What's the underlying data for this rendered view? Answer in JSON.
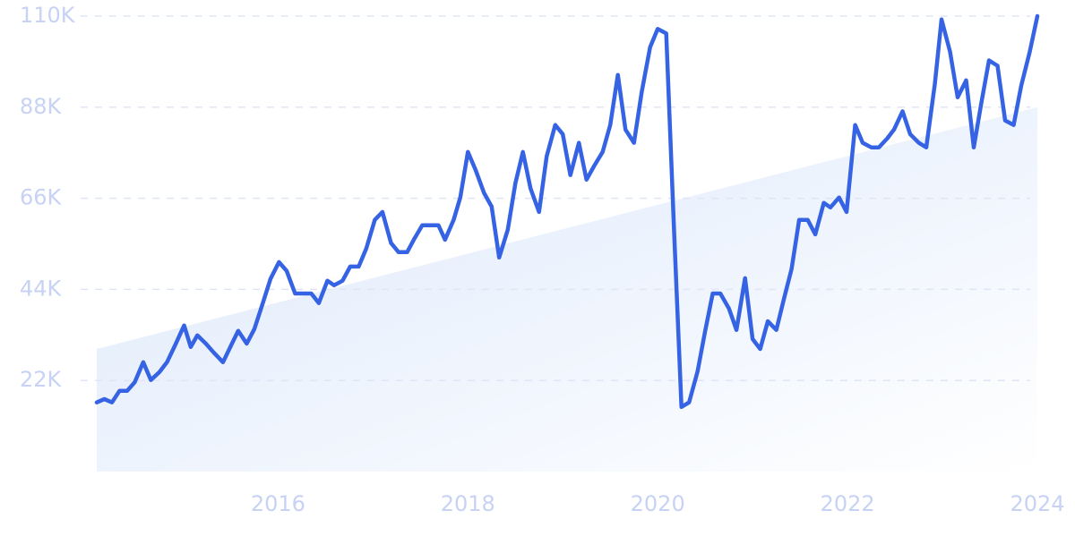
{
  "chart_data": {
    "type": "line",
    "x": [
      2014.09,
      2014.17,
      2014.25,
      2014.33,
      2014.41,
      2014.49,
      2014.58,
      2014.66,
      2014.75,
      2014.83,
      2014.92,
      2015.01,
      2015.08,
      2015.15,
      2015.24,
      2015.32,
      2015.42,
      2015.51,
      2015.58,
      2015.67,
      2015.75,
      2015.84,
      2015.92,
      2016.01,
      2016.09,
      2016.18,
      2016.26,
      2016.35,
      2016.43,
      2016.52,
      2016.59,
      2016.68,
      2016.76,
      2016.85,
      2016.93,
      2017.02,
      2017.1,
      2017.19,
      2017.27,
      2017.36,
      2017.43,
      2017.52,
      2017.6,
      2017.69,
      2017.76,
      2017.85,
      2017.92,
      2018.0,
      2018.08,
      2018.17,
      2018.25,
      2018.33,
      2018.42,
      2018.5,
      2018.58,
      2018.66,
      2018.75,
      2018.83,
      2018.92,
      2019.0,
      2019.08,
      2019.17,
      2019.25,
      2019.33,
      2019.42,
      2019.5,
      2019.58,
      2019.66,
      2019.75,
      2019.83,
      2019.92,
      2020.0,
      2020.09,
      2020.17,
      2020.25,
      2020.33,
      2020.42,
      2020.5,
      2020.58,
      2020.66,
      2020.75,
      2020.83,
      2020.92,
      2021.0,
      2021.08,
      2021.16,
      2021.25,
      2021.33,
      2021.41,
      2021.49,
      2021.58,
      2021.66,
      2021.75,
      2021.82,
      2021.91,
      2021.99,
      2022.08,
      2022.16,
      2022.25,
      2022.33,
      2022.42,
      2022.49,
      2022.58,
      2022.66,
      2022.75,
      2022.83,
      2022.92,
      2022.99,
      2023.08,
      2023.16,
      2023.25,
      2023.33,
      2023.41,
      2023.49,
      2023.58,
      2023.66,
      2023.75,
      2023.83,
      2023.92,
      2024.0
    ],
    "series": [
      {
        "color": "#3563e3",
        "values": [
          16700,
          17500,
          16700,
          19500,
          19500,
          21600,
          26400,
          22100,
          24000,
          26400,
          30700,
          35300,
          30100,
          32900,
          30900,
          28800,
          26400,
          30700,
          34000,
          30900,
          34400,
          40700,
          46500,
          50600,
          48500,
          43000,
          43000,
          43000,
          40700,
          46100,
          45000,
          46100,
          49500,
          49500,
          53900,
          60800,
          62700,
          55200,
          53000,
          53000,
          56000,
          59500,
          59500,
          59500,
          56000,
          60800,
          66200,
          77200,
          72900,
          67300,
          64000,
          51700,
          58400,
          69600,
          77200,
          68400,
          62700,
          76100,
          83700,
          81500,
          71600,
          79400,
          70500,
          73800,
          77200,
          83700,
          95800,
          82600,
          79400,
          91500,
          102500,
          106900,
          105800,
          59500,
          15600,
          16700,
          24200,
          34000,
          43000,
          43000,
          39400,
          34200,
          46700,
          32000,
          29600,
          36300,
          34200,
          41700,
          48900,
          60800,
          60800,
          57300,
          64900,
          63800,
          66200,
          62700,
          83700,
          79400,
          78300,
          78300,
          80500,
          82600,
          87000,
          81500,
          79400,
          78300,
          93700,
          109200,
          101400,
          90400,
          94500,
          78300,
          89100,
          99300,
          98000,
          84800,
          83700,
          93200,
          101400,
          110000
        ]
      }
    ],
    "trend": {
      "x": [
        2014.09,
        2024.0
      ],
      "values": [
        29600,
        88000
      ],
      "color": "#dce8fb"
    },
    "xlim": [
      2014.09,
      2024.0
    ],
    "ylim": [
      0,
      110000
    ],
    "xticks": [
      2016,
      2018,
      2020,
      2022,
      2024
    ],
    "yticks": [
      {
        "value": 22000,
        "label": "22K"
      },
      {
        "value": 44000,
        "label": "44K"
      },
      {
        "value": 66000,
        "label": "66K"
      },
      {
        "value": 88000,
        "label": "88K"
      },
      {
        "value": 110000,
        "label": "110K"
      }
    ],
    "grid": true
  }
}
